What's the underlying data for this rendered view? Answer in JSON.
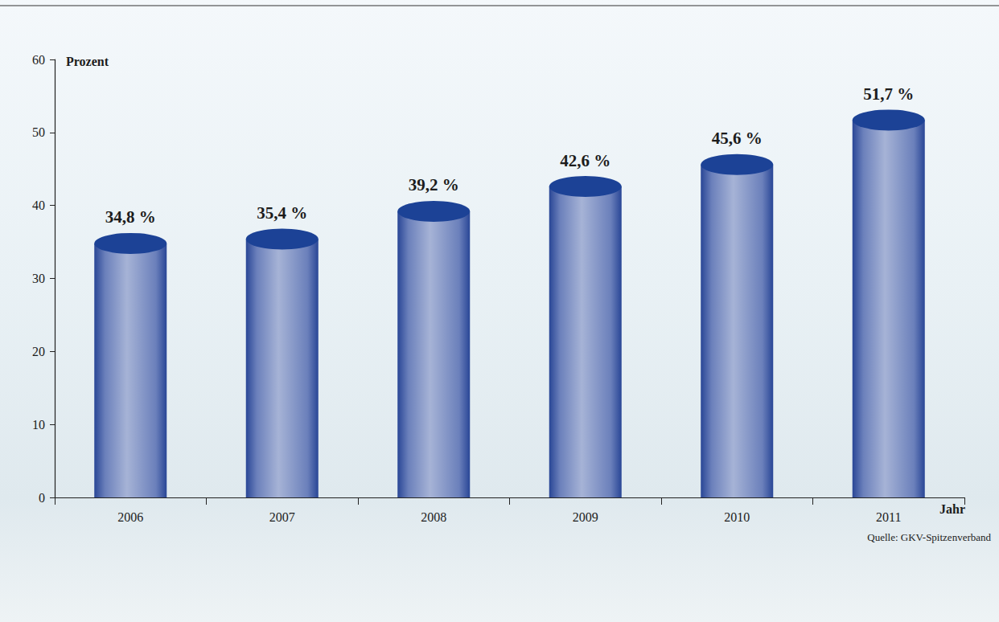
{
  "chart_data": {
    "type": "bar",
    "y_label": "Prozent",
    "x_label": "Jahr",
    "annotations": [
      "Quelle: GKV-Spitzenverband"
    ],
    "categories": [
      "2006",
      "2007",
      "2008",
      "2009",
      "2010",
      "2011"
    ],
    "values": [
      34.8,
      35.4,
      39.2,
      42.6,
      45.6,
      51.7
    ],
    "value_labels": [
      "34,8 %",
      "35,4 %",
      "39,2 %",
      "42,6 %",
      "45,6 %",
      "51,7 %"
    ],
    "color": "#2b4a9e",
    "ylim": [
      0,
      60
    ],
    "yticks": [
      0,
      10,
      20,
      30,
      40,
      50,
      60
    ],
    "grid": false,
    "data_labels": true
  }
}
